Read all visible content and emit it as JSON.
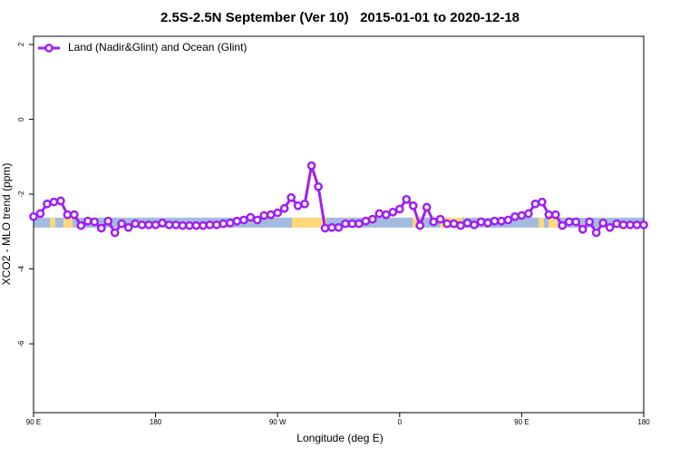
{
  "chart_data": {
    "type": "line",
    "title": "2.5S-2.5N September (Ver 10)   2015-01-01 to 2020-12-18",
    "xlabel": "Longitude (deg E)",
    "ylabel": "XCO2 - MLO trend (ppm)",
    "xlim": [
      90,
      540
    ],
    "ylim": [
      -7.84,
      2.22
    ],
    "xticks": [
      {
        "value": 90,
        "label": "90 E"
      },
      {
        "value": 180,
        "label": "180"
      },
      {
        "value": 270,
        "label": "90 W"
      },
      {
        "value": 360,
        "label": "0"
      },
      {
        "value": 450,
        "label": "90 E"
      },
      {
        "value": 540,
        "label": "180"
      }
    ],
    "yticks": [
      2,
      0,
      -2,
      -4,
      -6
    ],
    "legend": "top-left",
    "x": [
      90,
      95,
      100,
      105,
      110,
      115,
      120,
      125,
      130,
      135,
      140,
      145,
      150,
      155,
      160,
      165,
      170,
      175,
      180,
      185,
      190,
      195,
      200,
      205,
      210,
      215,
      220,
      225,
      230,
      235,
      240,
      245,
      250,
      255,
      260,
      265,
      270,
      275,
      280,
      285,
      290,
      295,
      300,
      305,
      310,
      315,
      320,
      325,
      330,
      335,
      340,
      345,
      350,
      355,
      360,
      365,
      370,
      375,
      380,
      385,
      390,
      395,
      400,
      405,
      410,
      415,
      420,
      425,
      430,
      435,
      440,
      445,
      450,
      455,
      460,
      465,
      470,
      475,
      480,
      485,
      490,
      495,
      500,
      505,
      510,
      515,
      520,
      525,
      530,
      535,
      540
    ],
    "series": [
      {
        "name": "Land (Nadir&Glint) and Ocean (Glint)",
        "color": "#a020f0",
        "values": [
          -2.6,
          -2.52,
          -2.26,
          -2.21,
          -2.18,
          -2.55,
          -2.55,
          -2.84,
          -2.72,
          -2.74,
          -2.91,
          -2.72,
          -3.03,
          -2.79,
          -2.89,
          -2.79,
          -2.82,
          -2.82,
          -2.82,
          -2.77,
          -2.82,
          -2.82,
          -2.84,
          -2.84,
          -2.84,
          -2.84,
          -2.82,
          -2.82,
          -2.79,
          -2.77,
          -2.72,
          -2.69,
          -2.62,
          -2.69,
          -2.57,
          -2.55,
          -2.5,
          -2.38,
          -2.09,
          -2.31,
          -2.26,
          -1.24,
          -1.8,
          -2.91,
          -2.89,
          -2.89,
          -2.79,
          -2.79,
          -2.79,
          -2.72,
          -2.67,
          -2.52,
          -2.55,
          -2.48,
          -2.4,
          -2.14,
          -2.31,
          -2.84,
          -2.35,
          -2.74,
          -2.67,
          -2.79,
          -2.79,
          -2.84,
          -2.77,
          -2.82,
          -2.74,
          -2.77,
          -2.72,
          -2.72,
          -2.69,
          -2.6,
          -2.57,
          -2.52,
          -2.26,
          -2.21,
          -2.55,
          -2.55,
          -2.84,
          -2.74,
          -2.74,
          -2.94,
          -2.74,
          -3.03,
          -2.77,
          -2.89,
          -2.79,
          -2.82,
          -2.82,
          -2.82,
          -2.82
        ]
      }
    ]
  }
}
